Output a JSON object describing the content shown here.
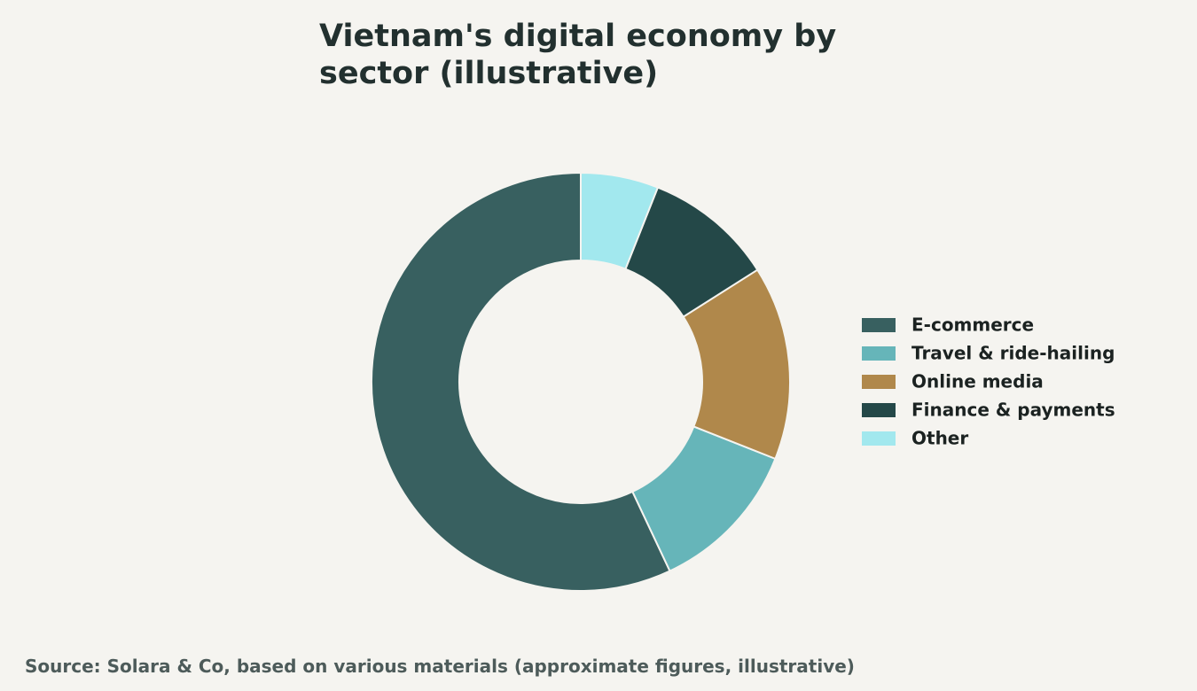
{
  "chart_data": {
    "type": "donut",
    "title": "Vietnam's digital economy by sector (illustrative)",
    "source": "Source: Solara & Co, based on various materials (approximate figures, illustrative)",
    "categories": [
      "E-commerce",
      "Travel & ride-hailing",
      "Online media",
      "Finance & payments",
      "Other"
    ],
    "values": [
      57,
      12,
      15,
      10,
      6
    ],
    "colors": [
      "#386060",
      "#66b5b9",
      "#b0884b",
      "#244848",
      "#a2e8ee"
    ],
    "legend": "right"
  }
}
